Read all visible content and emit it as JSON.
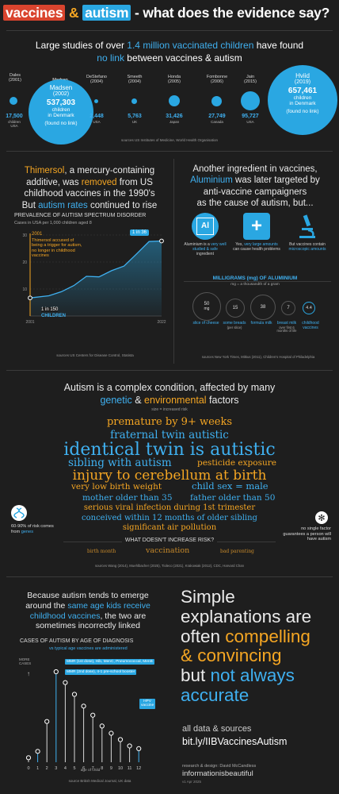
{
  "header": {
    "word1": "vaccines",
    "amp": "&",
    "word2": "autism",
    "rest": "- what does the evidence say?"
  },
  "studies_intro": {
    "line1_a": "Large studies of over ",
    "line1_b": "1.4 million vaccinated children",
    "line1_c": " have found",
    "line2_a": "no link",
    "line2_b": " between vaccines & autism"
  },
  "studies": [
    {
      "name": "Dales",
      "year": "(2001)",
      "value": "17,500",
      "unit": "children",
      "country": "USA"
    },
    {
      "name": "Madsen",
      "year": "(2002)",
      "value": "537,303",
      "unit": "children",
      "country": "in Denmark",
      "note": "(found no link)"
    },
    {
      "name": "DeStefano",
      "year": "(2004)",
      "value": "2,448",
      "country": "USA"
    },
    {
      "name": "Smeeth",
      "year": "(2004)",
      "value": "5,763",
      "country": "UK"
    },
    {
      "name": "Honda",
      "year": "(2005)",
      "value": "31,426",
      "country": "Japan"
    },
    {
      "name": "Fombonne",
      "year": "(2006)",
      "value": "27,749",
      "country": "Canada"
    },
    {
      "name": "Jain",
      "year": "(2015)",
      "value": "95,727",
      "country": "USA"
    },
    {
      "name": "Hviid",
      "year": "(2019)",
      "value": "657,461",
      "unit": "children",
      "country": "in Denmark",
      "note": "(found no link)"
    }
  ],
  "studies_sources": "sources US Institutes of Medicine, World Health Organisation",
  "thimersol": {
    "l1a": "Thimersol",
    "l1b": ", a mercury-containing",
    "l2a": "additive, was ",
    "l2b": "removed",
    "l2c": " from US",
    "l3": "childhood vaccines in the 1990's",
    "l4a": "But ",
    "l4b": "autism rates",
    "l4c": " continued to rise",
    "chart_title": "PREVALENCE OF AUTISM SPECTRUM DISORDER",
    "chart_sub": "Cases in USA per 1,000 children aged 8",
    "marker_year": "2001",
    "marker_text": "Thimersol accused of being a trigger for autism, no longer in childhood vaccines",
    "start_label": "1 in 150",
    "start_label2": "CHILDREN",
    "end_label": "1 in 36",
    "source": "sources US Centers for Disease Control, Statista"
  },
  "aluminium": {
    "l1": "Another ingredient in vaccines,",
    "l2a": "Aluminium",
    "l2b": " was later targeted by",
    "l3": "anti-vaccine campaigners",
    "l4": "as the cause of autism, but...",
    "card1_icon": "Al",
    "card1_text_a": "Aluminium is a ",
    "card1_text_b": "very well studied & safe",
    "card1_text_c": " ingredient",
    "card2_icon": "+",
    "card2_text_a": "Yes, ",
    "card2_text_b": "very large amounts",
    "card2_text_c": " can cause health problems",
    "card3_text_a": "But vaccines contain ",
    "card3_text_b": "microscopic amounts",
    "mg_title": "MILLIGRAMS (mg) OF ALUMINIUM",
    "mg_sub": "mg = a thousandth of a gram",
    "mg_items": [
      {
        "value": "50",
        "unit": "mg",
        "label": "slice of cheese"
      },
      {
        "value": "15",
        "label": "some breads",
        "label2": "(per slice)"
      },
      {
        "value": "38",
        "label": "formula milk"
      },
      {
        "value": "7",
        "label": "breast milk",
        "label2": "over first 6 months of life"
      },
      {
        "value": "4.4",
        "label": "childhood vaccines"
      }
    ],
    "source": "sources New York Times, Mitkus (2011), Children's Hospital of Philadelphia"
  },
  "complex": {
    "l1": "Autism is a complex condition, affected by many",
    "l2a": "genetic",
    "l2b": " & ",
    "l2c": "environmental",
    "l2d": " factors",
    "size_note": "size = increased risk",
    "left_note_a": "60-90% of risk comes from ",
    "left_note_b": "genes",
    "right_note": "no single factor guarantees a person will have autism",
    "not_title": "WHAT DOESN'T INCREASE RISK?",
    "not_items": [
      "birth month",
      "vaccination",
      "bad parenting"
    ],
    "source": "sources Wang (2014), Muehlbacher (2025), Tioleco (2021), Krakowiak (2012), CDC, Harvard Chan"
  },
  "word_cloud": [
    "premature by 9+ weeks",
    "fraternal twin autistic",
    "identical twin is autistic",
    "sibling with autism",
    "pesticide exposure",
    "injury to cerebellum at birth",
    "very low birth weight",
    "child sex = male",
    "mother older than 35",
    "father older than 50",
    "serious viral infection during 1st trimester",
    "conceived within 12 months of older sibling",
    "significant air pollution"
  ],
  "age": {
    "l1": "Because autism tends to emerge",
    "l2a": "around the ",
    "l2b": "same age kids receive",
    "l3": "childhood vaccines",
    "l3b": ", the two are",
    "l4": "sometimes incorrectly linked",
    "chart_title": "CASES OF AUTISM BY AGE OF DIAGNOSIS",
    "chart_sub": "vs typical age vaccines are administered",
    "y_note": "MORE CASES",
    "vax1": "MMR (1st dose), Hib, MenC, Pneumococcal, MenB",
    "vax2": "MMR (2nd dose), 4-1 pre-school booster",
    "vax3": "HPV vaccine",
    "x_label": "age of child",
    "source": "source British Medical Journal, UK data"
  },
  "closing": {
    "l1": "Simple",
    "l2": "explanations are",
    "l3a": "often ",
    "l3b": "compelling",
    "l4": "& convincing",
    "l5a": "but ",
    "l5b": "not always",
    "l6": "accurate",
    "data_note": "all data & sources",
    "link": "bit.ly/IIBVaccinesAutism",
    "credit": "research & design: David McCandless",
    "brand": "informationisbeautiful",
    "version": "v1 Apr 2025"
  },
  "chart_data": [
    {
      "type": "line",
      "title": "PREVALENCE OF AUTISM SPECTRUM DISORDER",
      "subtitle": "Cases in USA per 1,000 children aged 8",
      "x": [
        2001,
        2004,
        2006,
        2008,
        2010,
        2012,
        2014,
        2016,
        2018,
        2020,
        2022
      ],
      "y": [
        6.7,
        7.5,
        9.0,
        11.3,
        14.7,
        14.5,
        16.8,
        18.5,
        23.0,
        27.6,
        27.8
      ],
      "x_ticks": [
        "2001",
        "2022"
      ],
      "y_ticks": [
        "10",
        "20",
        "30"
      ],
      "ylim": [
        0,
        30
      ]
    },
    {
      "type": "bar",
      "title": "CASES OF AUTISM BY AGE OF DIAGNOSIS",
      "categories": [
        "0",
        "1",
        "2",
        "3",
        "4",
        "5",
        "6",
        "7",
        "8",
        "9",
        "10",
        "11",
        "12"
      ],
      "values": [
        5,
        12,
        45,
        100,
        88,
        75,
        62,
        52,
        40,
        32,
        25,
        18,
        15
      ]
    }
  ]
}
